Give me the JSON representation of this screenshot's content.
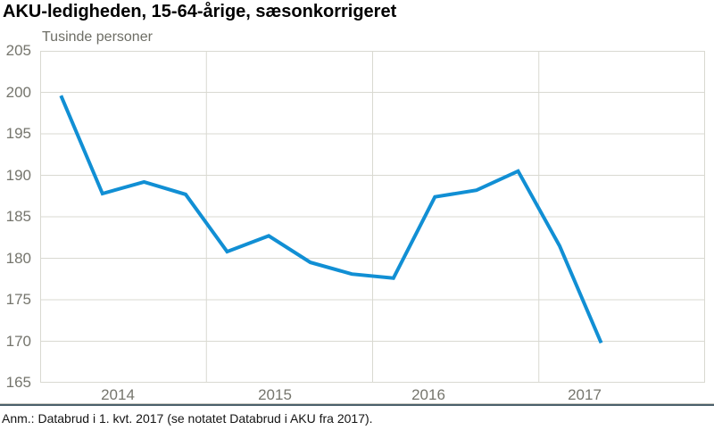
{
  "header": {
    "title": "AKU-ledigheden, 15-64-årige, sæsonkorrigeret"
  },
  "chart_data": {
    "type": "line",
    "title": "AKU-ledigheden, 15-64-årige, sæsonkorrigeret",
    "unit_label": "Tusinde personer",
    "x": [
      "2014K1",
      "2014K2",
      "2014K3",
      "2014K4",
      "2015K1",
      "2015K2",
      "2015K3",
      "2015K4",
      "2016K1",
      "2016K2",
      "2016K3",
      "2016K4",
      "2017K1",
      "2017K2"
    ],
    "values": [
      199.6,
      187.8,
      189.2,
      187.7,
      180.8,
      182.7,
      179.5,
      178.1,
      177.6,
      187.4,
      188.2,
      190.5,
      181.5,
      169.8
    ],
    "x_tick_labels": [
      "2014",
      "2015",
      "2016",
      "2017"
    ],
    "x_slot_count": 16,
    "quarters_per_year": 4,
    "yticks": [
      205,
      200,
      195,
      190,
      185,
      180,
      175,
      170,
      165
    ],
    "ylim": [
      165,
      205
    ],
    "grid": true,
    "legend": false,
    "line_color": "#118fd4",
    "grid_color": "#d9d9d1",
    "axis_text_color": "#75756d"
  },
  "footer": {
    "note": "Anm.: Databrud i 1. kvt. 2017 (se notatet Databrud i AKU fra 2017)."
  }
}
